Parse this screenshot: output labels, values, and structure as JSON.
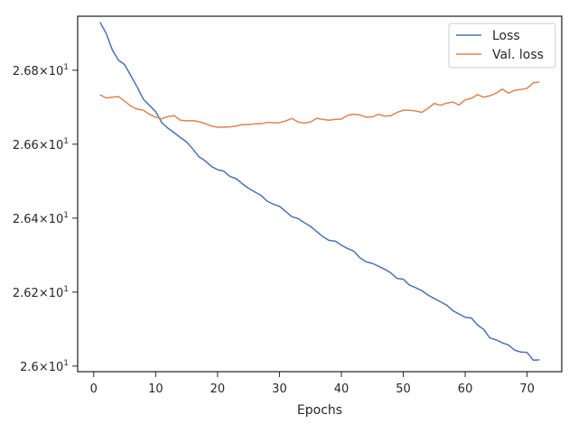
{
  "chart_data": {
    "type": "line",
    "xlabel": "Epochs",
    "ylabel": "",
    "title": "",
    "xlim": [
      -2.6,
      75.6
    ],
    "ylim": [
      25.985,
      26.946
    ],
    "xticks": [
      0,
      10,
      20,
      30,
      40,
      50,
      60,
      70
    ],
    "yticks": [
      {
        "value": 26.0,
        "mantissa": "2.6",
        "label": "2.6×10"
      },
      {
        "value": 26.2,
        "mantissa": "2.62",
        "label": "2.62×10"
      },
      {
        "value": 26.4,
        "mantissa": "2.64",
        "label": "2.64×10"
      },
      {
        "value": 26.6,
        "mantissa": "2.66",
        "label": "2.66×10"
      },
      {
        "value": 26.8,
        "mantissa": "2.68",
        "label": "2.68×10"
      }
    ],
    "ytick_exponent": "1",
    "legend_position": "top-right",
    "x": [
      1,
      2,
      3,
      4,
      5,
      6,
      7,
      8,
      9,
      10,
      11,
      12,
      13,
      14,
      15,
      16,
      17,
      18,
      19,
      20,
      21,
      22,
      23,
      24,
      25,
      26,
      27,
      28,
      29,
      30,
      31,
      32,
      33,
      34,
      35,
      36,
      37,
      38,
      39,
      40,
      41,
      42,
      43,
      44,
      45,
      46,
      47,
      48,
      49,
      50,
      51,
      52,
      53,
      54,
      55,
      56,
      57,
      58,
      59,
      60,
      61,
      62,
      63,
      64,
      65,
      66,
      67,
      68,
      69,
      70,
      71,
      72
    ],
    "series": [
      {
        "name": "Loss",
        "color": "#4c72b0",
        "values": [
          26.93,
          26.9,
          26.855,
          26.827,
          26.815,
          26.785,
          26.755,
          26.722,
          26.705,
          26.688,
          26.658,
          26.643,
          26.631,
          26.618,
          26.606,
          26.587,
          26.566,
          26.555,
          26.54,
          26.531,
          26.527,
          26.513,
          26.507,
          26.493,
          26.481,
          26.471,
          26.462,
          26.446,
          26.438,
          26.432,
          26.418,
          26.404,
          26.399,
          26.388,
          26.378,
          26.364,
          26.35,
          26.34,
          26.338,
          26.327,
          26.318,
          26.311,
          26.293,
          26.282,
          26.278,
          26.27,
          26.262,
          26.252,
          26.237,
          26.235,
          26.219,
          26.212,
          26.204,
          26.192,
          26.183,
          26.174,
          26.165,
          26.15,
          26.141,
          26.132,
          26.13,
          26.111,
          26.099,
          26.076,
          26.071,
          26.063,
          26.057,
          26.043,
          26.038,
          26.037,
          26.016,
          26.017
        ]
      },
      {
        "name": "Val. loss",
        "color": "#dd8452",
        "values": [
          26.734,
          26.725,
          26.727,
          26.729,
          26.716,
          26.703,
          26.695,
          26.692,
          26.681,
          26.673,
          26.669,
          26.675,
          26.677,
          26.665,
          26.663,
          26.664,
          26.661,
          26.656,
          26.649,
          26.646,
          26.646,
          26.647,
          26.649,
          26.653,
          26.653,
          26.655,
          26.655,
          26.659,
          26.658,
          26.658,
          26.663,
          26.67,
          26.66,
          26.657,
          26.66,
          26.67,
          26.667,
          26.665,
          26.667,
          26.668,
          26.678,
          26.681,
          26.679,
          26.673,
          26.674,
          26.681,
          26.676,
          26.677,
          26.686,
          26.692,
          26.692,
          26.69,
          26.686,
          26.697,
          26.71,
          26.705,
          26.711,
          26.714,
          26.706,
          26.72,
          26.724,
          26.734,
          26.727,
          26.731,
          26.738,
          26.749,
          26.738,
          26.746,
          26.748,
          26.751,
          26.766,
          26.768
        ]
      }
    ]
  }
}
